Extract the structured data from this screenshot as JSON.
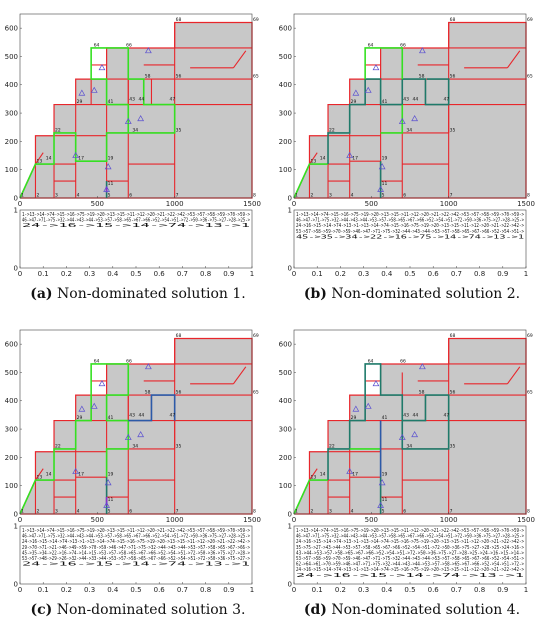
{
  "axes": {
    "y_ticks": [
      "0",
      "100",
      "200",
      "300",
      "400",
      "500",
      "600"
    ],
    "x_ticks": [
      "0",
      "500",
      "1000",
      "1500"
    ],
    "x_ticks_bottom": [
      "0",
      "0.1",
      "0.2",
      "0.3",
      "0.4",
      "0.5",
      "0.6",
      "0.7",
      "0.8",
      "0.9",
      "1"
    ],
    "y_ticks_bottom": [
      "0",
      "1"
    ]
  },
  "colors": {
    "area_fill": "#c8c8c8",
    "aisle": "#e8262b",
    "path_green": "#35e022",
    "path_teal": "#1f7a6a",
    "path_blue": "#2c5aa8",
    "path_purple": "#8a2bd0",
    "marker": "#5a4fd0"
  },
  "panels": [
    {
      "id": "a",
      "caption_letter": "(a)",
      "caption_text": "Non-dominated solution 1.",
      "route_lines": [
        "1->13->14->74->15->16->75->19->20->13->15->11->12->20->21->22->42->53->57->58->59->70->59->",
        "46->47->71->75->32->44->43->44->53->57->58->65->67->66->52->54->51->72->50->36->75->27->28->25->",
        "24->16->15->14->74->13->1"
      ]
    },
    {
      "id": "b",
      "caption_letter": "(b)",
      "caption_text": "Non-dominated solution 2.",
      "route_lines": [
        "1->13->14->74->15->16->75->19->20->13->15->11->12->20->21->22->42->53->57->58->59->70->59->",
        "46->47->71->75->32->44->43->44->53->57->58->65->67->66->52->54->51->72->50->36->75->27->28->25->",
        "24->16->15->14->74->13->1->13->14->74->15->16->75->19->20->13->15->11->12->20->21->22->42->",
        "53->57->58->59->70->59->46->47->71->75->32->44->43->44->53->57->58->65->67->66->52->54->51->",
        "45->35->34->22->16->75->14->74->13->1"
      ]
    },
    {
      "id": "c",
      "caption_letter": "(c)",
      "caption_text": "Non-dominated solution 3.",
      "route_lines": [
        "1->13->14->74->15->16->75->19->20->13->15->11->12->20->21->22->42->53->57->58->59->70->59->",
        "46->47->71->75->32->44->43->44->53->57->58->65->67->66->52->54->51->72->50->36->75->27->28->25->",
        "24->16->15->14->74->13->1->13->14->74->15->16->75->19->20->13->15->11->12->20->21->22->42->",
        "29->70->71->21->46->49->59->70->59->46->47->71->75->32->44->43->44->53->57->58->65->67->66->",
        "45->35->34->22->16->74->14->15->53->57->58->65->67->66->52->54->51->72->50->36->75->27->28->",
        "53->57->48->29->26->32->44->33->44->53->57->58->65->67->66->52->54->51->72->50->36->75->27->",
        "24->16->15->14->74->13->1"
      ]
    },
    {
      "id": "d",
      "caption_letter": "(d)",
      "caption_text": "Non-dominated solution 4.",
      "route_lines": [
        "1->13->14->74->15->16->75->19->20->13->15->11->12->20->21->22->42->53->57->58->59->70->59->",
        "46->47->71->75->32->44->43->44->53->57->58->65->67->66->52->54->51->72->50->36->75->27->28->25->",
        "24->16->15->14->74->13->1->13->14->74->15->16->75->19->20->13->15->11->12->20->21->22->42->",
        "35->75->27->43->44->53->57->58->65->67->66->52->54->51->72->50->36->75->27->28->25->24->16->",
        "43->44->53->57->58->65->67->66->52->54->51->72->50->36->75->27->28->25->24->16->15->14->",
        "53->57->58->59->70->59->46->47->71->75->32->44->43->44->53->57->58->65->67->66->52->54->51->",
        "62->64->61->70->59->46->47->71->75->32->44->43->44->53->57->58->65->67->66->52->54->51->72->",
        "24->16->15->14->74->13->1->13->14->74->15->16->75->19->20->13->15->11->12->20->21->22->42->",
        "24->16->15->14->74->13->1"
      ]
    }
  ]
}
